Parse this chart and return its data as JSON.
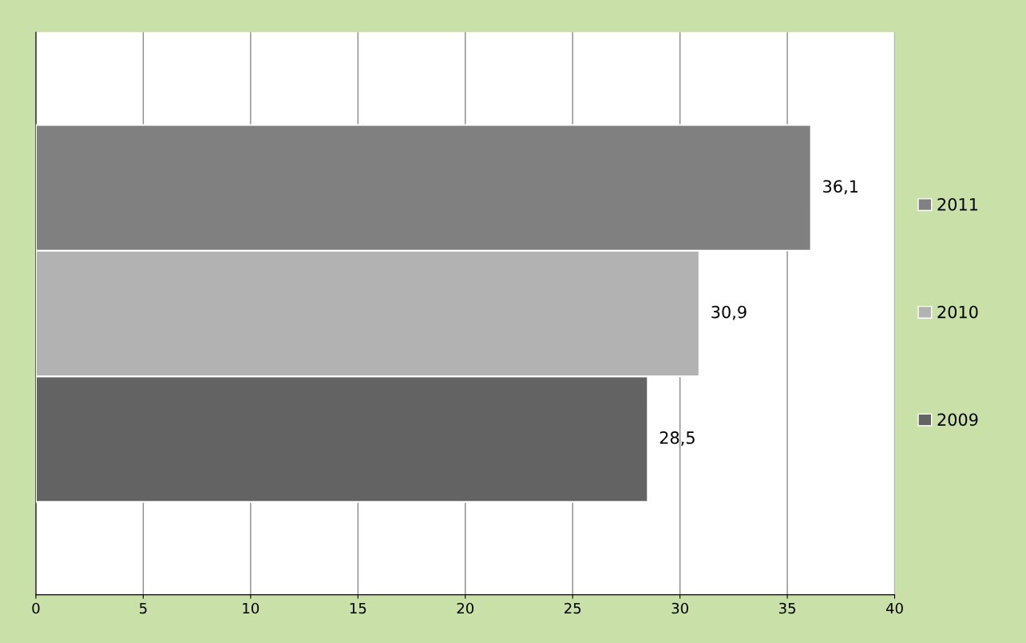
{
  "chart_data": {
    "type": "bar",
    "orientation": "horizontal",
    "categories": [
      null
    ],
    "series": [
      {
        "name": "2009",
        "color": "#636363",
        "values": [
          28.5
        ],
        "value_labels": [
          "28,5"
        ]
      },
      {
        "name": "2010",
        "color": "#b2b2b2",
        "values": [
          30.9
        ],
        "value_labels": [
          "30,9"
        ]
      },
      {
        "name": "2011",
        "color": "#808080",
        "values": [
          36.1
        ],
        "value_labels": [
          "36,1"
        ]
      }
    ],
    "xlim": [
      0,
      40
    ],
    "xticks": [
      0,
      5,
      10,
      15,
      20,
      25,
      30,
      35,
      40
    ],
    "grid": "x",
    "legend": "right"
  }
}
